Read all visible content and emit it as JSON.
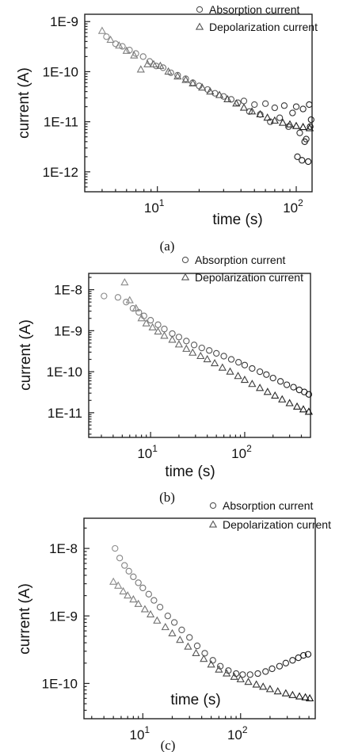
{
  "chart_data": [
    {
      "type": "scatter",
      "panel_label": "(a)",
      "xlabel": "time (s)",
      "ylabel": "current (A)",
      "xscale": "log",
      "yscale": "log",
      "xlim": [
        3,
        130
      ],
      "ylim": [
        4e-13,
        1.4e-09
      ],
      "x_ticks": [
        {
          "value": 10,
          "base": "10",
          "exp": "1"
        },
        {
          "value": 100,
          "base": "10",
          "exp": "2"
        }
      ],
      "y_ticks": [
        {
          "value": 1e-09,
          "label": "1E-9"
        },
        {
          "value": 1e-10,
          "label": "1E-10"
        },
        {
          "value": 1e-11,
          "label": "1E-11"
        },
        {
          "value": 1e-12,
          "label": "1E-12"
        }
      ],
      "legend_position": "top-right",
      "series": [
        {
          "name": "Absorption current",
          "marker": "circle",
          "x": [
            4.3,
            5.0,
            5.6,
            6.3,
            7.0,
            7.9,
            8.8,
            9.8,
            11,
            12.5,
            14,
            16,
            18,
            20,
            23,
            26,
            30,
            34,
            38,
            42,
            46,
            50,
            55,
            60,
            65,
            70,
            76,
            82,
            88,
            94,
            100,
            106,
            112,
            118,
            124,
            128,
            102,
            110,
            115,
            122,
            126
          ],
          "y": [
            5e-10,
            3.6e-10,
            3.2e-10,
            2.7e-10,
            2.3e-10,
            2e-10,
            1.6e-10,
            1.3e-10,
            1.2e-10,
            9.5e-11,
            8.5e-11,
            7.2e-11,
            6e-11,
            5.2e-11,
            4.4e-11,
            3.7e-11,
            3.2e-11,
            2.8e-11,
            2.4e-11,
            2.6e-11,
            1.6e-11,
            2.2e-11,
            1.4e-11,
            2.3e-11,
            1e-11,
            1.9e-11,
            1.2e-11,
            2.1e-11,
            8e-12,
            1.5e-11,
            2e-11,
            6e-12,
            1.8e-11,
            4.5e-12,
            2.2e-11,
            1.1e-11,
            2e-12,
            1.7e-12,
            4e-12,
            1.6e-12,
            8e-12
          ]
        },
        {
          "name": "Depolarization current",
          "marker": "triangle",
          "x": [
            4.0,
            4.6,
            5.3,
            6.0,
            6.8,
            7.6,
            8.5,
            9.4,
            10.5,
            12,
            14,
            16,
            18,
            21,
            24,
            28,
            32,
            37,
            42,
            48,
            55,
            62,
            70,
            80,
            90,
            100,
            112,
            125
          ],
          "y": [
            6.5e-10,
            4.3e-10,
            3.3e-10,
            2.6e-10,
            2.1e-10,
            1.1e-10,
            1.4e-10,
            1.4e-10,
            1.3e-10,
            1e-10,
            8e-11,
            6.8e-11,
            5.8e-11,
            4.8e-11,
            4e-11,
            3.4e-11,
            2.8e-11,
            2.3e-11,
            1.9e-11,
            1.6e-11,
            1.4e-11,
            1.2e-11,
            1.05e-11,
            9.5e-12,
            8.8e-12,
            8.2e-12,
            7.8e-12,
            7.4e-12
          ]
        }
      ]
    },
    {
      "type": "scatter",
      "panel_label": "(b)",
      "xlabel": "time (s)",
      "ylabel": "current (A)",
      "xscale": "log",
      "yscale": "log",
      "xlim": [
        2.2,
        500
      ],
      "ylim": [
        2.5e-12,
        2.5e-08
      ],
      "x_ticks": [
        {
          "value": 10,
          "base": "10",
          "exp": "1"
        },
        {
          "value": 100,
          "base": "10",
          "exp": "2"
        }
      ],
      "y_ticks": [
        {
          "value": 1e-08,
          "label": "1E-8"
        },
        {
          "value": 1e-09,
          "label": "1E-9"
        },
        {
          "value": 1e-10,
          "label": "1E-10"
        },
        {
          "value": 1e-11,
          "label": "1E-11"
        }
      ],
      "legend_position": "top-right",
      "series": [
        {
          "name": "Absorption current",
          "marker": "circle",
          "x": [
            3.2,
            4.5,
            5.5,
            6.5,
            7.5,
            8.5,
            10,
            12,
            14,
            17,
            20,
            24,
            29,
            35,
            42,
            50,
            60,
            72,
            86,
            100,
            120,
            145,
            170,
            200,
            240,
            280,
            330,
            380,
            430,
            480
          ],
          "y": [
            7e-09,
            6.5e-09,
            5e-09,
            3.5e-09,
            2.8e-09,
            2.3e-09,
            1.8e-09,
            1.4e-09,
            1.1e-09,
            8.5e-10,
            7e-10,
            5.6e-10,
            4.5e-10,
            3.8e-10,
            3.3e-10,
            2.8e-10,
            2.4e-10,
            2e-10,
            1.7e-10,
            1.45e-10,
            1.2e-10,
            1e-10,
            8.5e-11,
            7e-11,
            5.8e-11,
            4.8e-11,
            4.2e-11,
            3.6e-11,
            3.2e-11,
            2.8e-11
          ]
        },
        {
          "name": "Depolarization current",
          "marker": "triangle",
          "x": [
            5.3,
            6.0,
            7.0,
            8.0,
            9.0,
            10.5,
            12,
            14,
            17,
            20,
            24,
            28,
            34,
            40,
            48,
            58,
            70,
            85,
            100,
            120,
            145,
            175,
            210,
            250,
            300,
            360,
            420,
            480
          ],
          "y": [
            1.5e-08,
            5.5e-09,
            3.5e-09,
            2e-09,
            1.5e-09,
            1.2e-09,
            9.5e-10,
            7.5e-10,
            6e-10,
            4.6e-10,
            3.6e-10,
            2.9e-10,
            2.4e-10,
            2e-10,
            1.6e-10,
            1.25e-10,
            1e-10,
            7.8e-11,
            6.3e-11,
            5e-11,
            4e-11,
            3.2e-11,
            2.6e-11,
            2.1e-11,
            1.7e-11,
            1.4e-11,
            1.2e-11,
            1.05e-11
          ]
        }
      ]
    },
    {
      "type": "scatter",
      "panel_label": "(c)",
      "xlabel": "time (s)",
      "ylabel": "current (A)",
      "xscale": "log",
      "yscale": "log",
      "xlim": [
        2.5,
        580
      ],
      "ylim": [
        3e-11,
        2.8e-08
      ],
      "x_ticks": [
        {
          "value": 10,
          "base": "10",
          "exp": "1"
        },
        {
          "value": 100,
          "base": "10",
          "exp": "2"
        }
      ],
      "y_ticks": [
        {
          "value": 1e-08,
          "label": "1E-8"
        },
        {
          "value": 1e-09,
          "label": "1E-9"
        },
        {
          "value": 1e-10,
          "label": "1E-10"
        }
      ],
      "legend_position": "top-right",
      "series": [
        {
          "name": "Absorption current",
          "marker": "circle",
          "x": [
            5.2,
            5.8,
            6.5,
            7.2,
            8.0,
            9.0,
            10,
            11.5,
            13,
            15,
            18,
            21,
            25,
            30,
            36,
            43,
            52,
            62,
            75,
            90,
            105,
            125,
            150,
            180,
            210,
            250,
            290,
            340,
            390,
            440,
            490
          ],
          "y": [
            1e-08,
            7.2e-09,
            5.6e-09,
            4.6e-09,
            3.8e-09,
            3.1e-09,
            2.6e-09,
            2.1e-09,
            1.7e-09,
            1.35e-09,
            1e-09,
            8e-10,
            6.2e-10,
            4.8e-10,
            3.6e-10,
            2.8e-10,
            2.2e-10,
            1.8e-10,
            1.55e-10,
            1.4e-10,
            1.35e-10,
            1.35e-10,
            1.4e-10,
            1.5e-10,
            1.65e-10,
            1.8e-10,
            2e-10,
            2.2e-10,
            2.4e-10,
            2.6e-10,
            2.7e-10
          ]
        },
        {
          "name": "Depolarization current",
          "marker": "triangle",
          "x": [
            5.0,
            5.6,
            6.3,
            7.0,
            8.0,
            9.0,
            10.5,
            12,
            14,
            17,
            20,
            24,
            29,
            35,
            42,
            50,
            60,
            72,
            86,
            100,
            120,
            145,
            170,
            200,
            240,
            290,
            340,
            400,
            460,
            510
          ],
          "y": [
            3.2e-09,
            2.8e-09,
            2.3e-09,
            2e-09,
            1.75e-09,
            1.5e-09,
            1.25e-09,
            1.05e-09,
            8.5e-10,
            6.8e-10,
            5.5e-10,
            4.4e-10,
            3.5e-10,
            2.8e-10,
            2.3e-10,
            1.9e-10,
            1.6e-10,
            1.4e-10,
            1.25e-10,
            1.15e-10,
            1.05e-10,
            9.6e-11,
            8.9e-11,
            8.2e-11,
            7.6e-11,
            7.1e-11,
            6.7e-11,
            6.4e-11,
            6.2e-11,
            6e-11
          ]
        }
      ]
    }
  ]
}
